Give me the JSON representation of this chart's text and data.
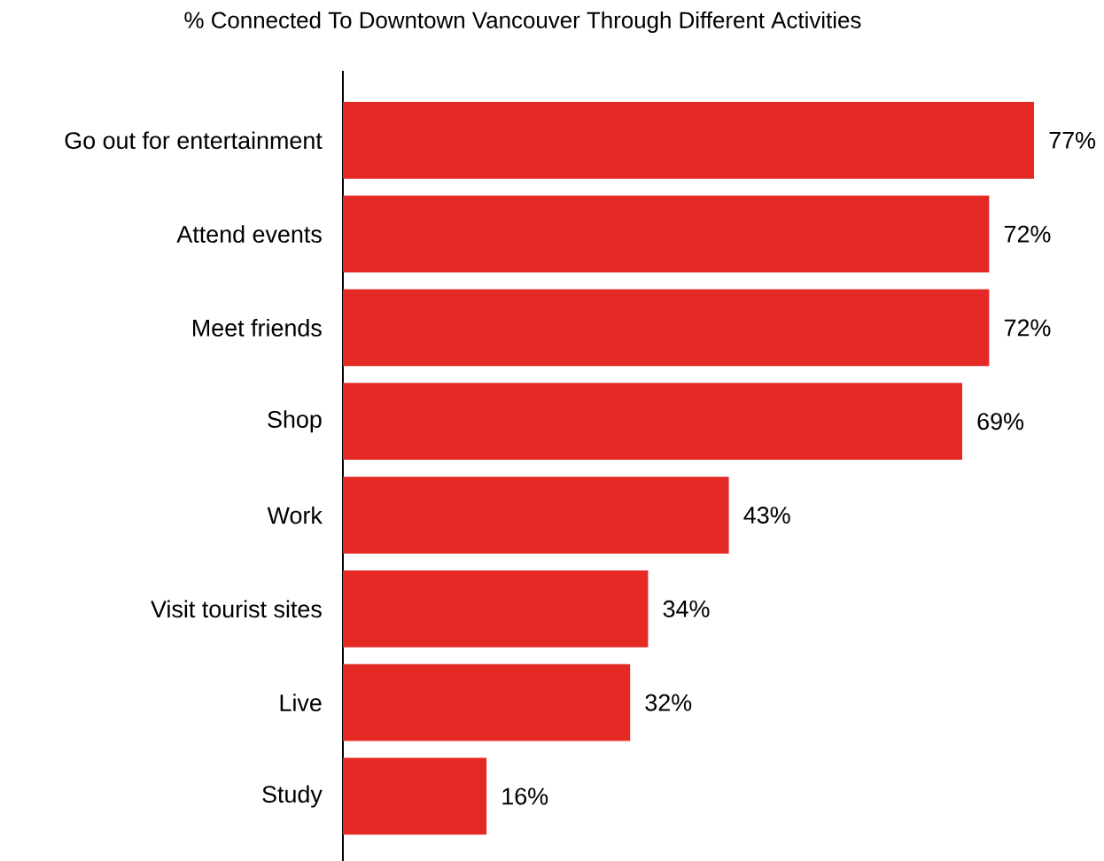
{
  "chart_data": {
    "type": "bar",
    "orientation": "horizontal",
    "title": "% Connected To Downtown Vancouver Through Different Activities",
    "categories": [
      "Go out for entertainment",
      "Attend events",
      "Meet friends",
      "Shop",
      "Work",
      "Visit tourist sites",
      "Live",
      "Study"
    ],
    "values": [
      77,
      72,
      72,
      69,
      43,
      34,
      32,
      16
    ],
    "value_labels": [
      "77%",
      "72%",
      "72%",
      "69%",
      "43%",
      "34%",
      "32%",
      "16%"
    ],
    "color": "#e52a25"
  }
}
